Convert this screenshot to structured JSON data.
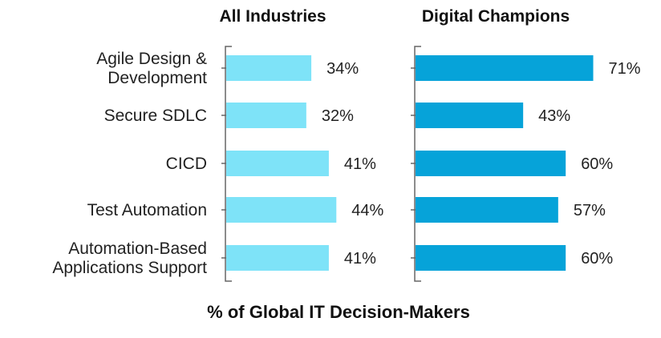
{
  "chart_data": {
    "type": "bar",
    "orientation": "horizontal",
    "categories": [
      [
        "Agile Design &",
        "Development"
      ],
      [
        "Secure SDLC"
      ],
      [
        "CICD"
      ],
      [
        "Test Automation"
      ],
      [
        "Automation-Based",
        "Applications Support"
      ]
    ],
    "series": [
      {
        "name": "All Industries",
        "color": "#7ee3f8",
        "values": [
          34,
          32,
          41,
          44,
          41
        ],
        "value_labels": [
          "34%",
          "32%",
          "41%",
          "44%",
          "41%"
        ]
      },
      {
        "name": "Digital Champions",
        "color": "#06a3d9",
        "values": [
          71,
          43,
          60,
          57,
          60
        ],
        "value_labels": [
          "71%",
          "43%",
          "60%",
          "57%",
          "60%"
        ]
      }
    ],
    "xlabel": "% of Global IT Decision-Makers",
    "ylabel": "",
    "xlim": [
      0,
      100
    ],
    "grid": false,
    "legend": "none"
  }
}
